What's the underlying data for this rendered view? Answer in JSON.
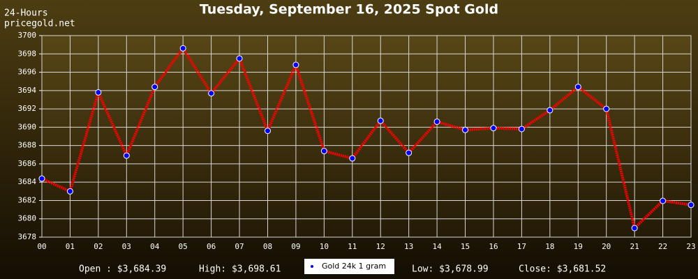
{
  "chart_data": {
    "type": "line",
    "title": "Tuesday, September 16, 2025 Spot Gold",
    "source_lines": [
      "24-Hours",
      "pricegold.net"
    ],
    "categories": [
      "00",
      "01",
      "02",
      "03",
      "04",
      "05",
      "06",
      "07",
      "08",
      "09",
      "10",
      "11",
      "12",
      "13",
      "14",
      "15",
      "16",
      "17",
      "18",
      "19",
      "20",
      "21",
      "22",
      "23"
    ],
    "series": [
      {
        "name": "Gold 24k 1 gram",
        "color": "#ff0000",
        "marker_color": "#0000ff",
        "values": [
          3684.39,
          3683.0,
          3693.8,
          3686.9,
          3694.4,
          3698.61,
          3693.7,
          3697.5,
          3689.6,
          3696.8,
          3687.4,
          3686.6,
          3690.7,
          3687.2,
          3690.6,
          3689.7,
          3689.9,
          3689.8,
          3691.85,
          3694.4,
          3692.0,
          3678.99,
          3681.96,
          3681.52
        ]
      }
    ],
    "ylim": [
      3678,
      3700
    ],
    "yticks": [
      3678,
      3680,
      3682,
      3684,
      3686,
      3688,
      3690,
      3692,
      3694,
      3696,
      3698,
      3700
    ],
    "grid": true,
    "stats": [
      "Open : $3,684.39",
      "High: $3,698.61",
      "Low: $3,678.99",
      "Close: $3,681.52"
    ]
  }
}
